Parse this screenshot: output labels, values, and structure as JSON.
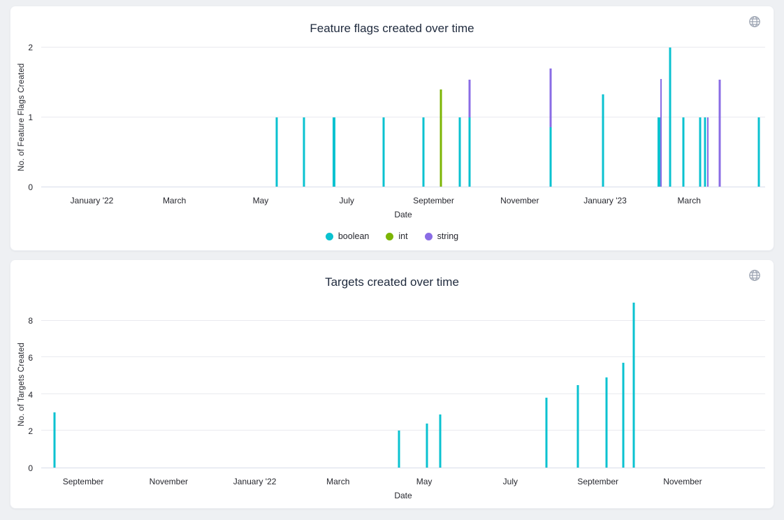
{
  "colors": {
    "boolean": "#0ac2d0",
    "int": "#7cb504",
    "string": "#8a6ce5",
    "grid": "#e9eaef",
    "axis_line": "#d7dcea",
    "title_text": "#1f2a3d",
    "body_text": "#26272e",
    "icon": "#9aa2b0",
    "card_bg": "#ffffff",
    "page_bg": "#eef0f3"
  },
  "icons": {
    "corner_icon": "globe-icon"
  },
  "chart_data": [
    {
      "type": "bar",
      "title": "Feature flags created over time",
      "ylabel": "No. of Feature Flags Created",
      "xlabel": "Date",
      "ylim": [
        0,
        2
      ],
      "y_ticks": [
        0,
        1,
        2
      ],
      "grid": true,
      "legend_position": "bottom-center",
      "legend": [
        {
          "label": "boolean",
          "c": "boolean"
        },
        {
          "label": "int",
          "c": "int"
        },
        {
          "label": "string",
          "c": "string"
        }
      ],
      "x_labels": [
        {
          "text": "January '22",
          "pct": 7.0
        },
        {
          "text": "March",
          "pct": 18.4
        },
        {
          "text": "May",
          "pct": 30.3
        },
        {
          "text": "July",
          "pct": 42.2
        },
        {
          "text": "September",
          "pct": 54.2
        },
        {
          "text": "November",
          "pct": 66.1
        },
        {
          "text": "January '23",
          "pct": 77.9
        },
        {
          "text": "March",
          "pct": 89.5
        }
      ],
      "bars": [
        {
          "pct": 32.5,
          "v": 1,
          "c": "boolean",
          "approx_date": "mid May '22"
        },
        {
          "pct": 36.3,
          "v": 1,
          "c": "boolean",
          "approx_date": "late May '22"
        },
        {
          "pct": 40.4,
          "v": 1,
          "c": "boolean",
          "w": 4,
          "approx_date": "late June '22"
        },
        {
          "pct": 47.3,
          "v": 1,
          "c": "boolean",
          "approx_date": "early Aug '22"
        },
        {
          "pct": 52.8,
          "v": 1,
          "c": "boolean",
          "approx_date": "early Sep '22"
        },
        {
          "pct": 55.2,
          "v": 1.4,
          "c": "int",
          "approx_date": "mid Sep '22"
        },
        {
          "pct": 57.8,
          "v": 1,
          "c": "boolean",
          "approx_date": "early Oct '22"
        },
        {
          "pct": 59.2,
          "v": 1,
          "c": "boolean",
          "approx_date": "mid Oct '22"
        },
        {
          "pct": 59.2,
          "v": 1.54,
          "vmin": 1,
          "c": "string",
          "approx_date": "mid Oct '22"
        },
        {
          "pct": 70.4,
          "v": 0.85,
          "c": "boolean",
          "approx_date": "late Nov '22"
        },
        {
          "pct": 70.4,
          "v": 1.7,
          "vmin": 0.85,
          "c": "string",
          "approx_date": "late Nov '22"
        },
        {
          "pct": 77.6,
          "v": 1.33,
          "c": "boolean",
          "approx_date": "early Jan '23"
        },
        {
          "pct": 85.3,
          "v": 1,
          "c": "boolean",
          "w": 4,
          "approx_date": "mid Feb '23"
        },
        {
          "pct": 85.6,
          "v": 1.55,
          "c": "string",
          "w": 2,
          "approx_date": "mid Feb '23"
        },
        {
          "pct": 86.9,
          "v": 2,
          "c": "boolean",
          "approx_date": "late Feb '23"
        },
        {
          "pct": 88.7,
          "v": 1,
          "c": "boolean",
          "approx_date": "early Mar '23"
        },
        {
          "pct": 91.0,
          "v": 1,
          "c": "boolean",
          "approx_date": "mid Mar '23"
        },
        {
          "pct": 91.7,
          "v": 1,
          "c": "boolean",
          "approx_date": "late Mar '23"
        },
        {
          "pct": 92.1,
          "v": 1,
          "c": "string",
          "w": 2,
          "approx_date": "late Mar '23"
        },
        {
          "pct": 93.7,
          "v": 1.54,
          "c": "string",
          "approx_date": "early Apr '23"
        },
        {
          "pct": 99.1,
          "v": 1,
          "c": "boolean",
          "approx_date": "early May '23"
        }
      ]
    },
    {
      "type": "bar",
      "title": "Targets created over time",
      "ylabel": "No. of Targets Created",
      "xlabel": "Date",
      "ylim": [
        0,
        9.1
      ],
      "y_ticks": [
        0,
        2,
        4,
        6,
        8
      ],
      "grid": true,
      "legend": null,
      "x_labels": [
        {
          "text": "September",
          "pct": 5.8
        },
        {
          "text": "November",
          "pct": 17.6
        },
        {
          "text": "January '22",
          "pct": 29.5
        },
        {
          "text": "March",
          "pct": 41.0
        },
        {
          "text": "May",
          "pct": 52.9
        },
        {
          "text": "July",
          "pct": 64.8
        },
        {
          "text": "September",
          "pct": 76.9
        },
        {
          "text": "November",
          "pct": 88.6
        }
      ],
      "bars": [
        {
          "pct": 1.8,
          "v": 3,
          "c": "boolean",
          "approx_date": "mid Aug '21"
        },
        {
          "pct": 49.4,
          "v": 2,
          "c": "boolean",
          "approx_date": "late Apr '22"
        },
        {
          "pct": 53.3,
          "v": 2.4,
          "c": "boolean",
          "approx_date": "early May '22"
        },
        {
          "pct": 55.1,
          "v": 2.9,
          "c": "boolean",
          "approx_date": "mid May '22"
        },
        {
          "pct": 69.8,
          "v": 3.8,
          "c": "boolean",
          "approx_date": "late Jul '22"
        },
        {
          "pct": 74.1,
          "v": 4.5,
          "c": "boolean",
          "approx_date": "early Aug '22"
        },
        {
          "pct": 78.1,
          "v": 4.9,
          "c": "boolean",
          "approx_date": "late Aug '22"
        },
        {
          "pct": 80.4,
          "v": 5.7,
          "c": "boolean",
          "approx_date": "early Sep '22"
        },
        {
          "pct": 81.9,
          "v": 9,
          "c": "boolean",
          "approx_date": "mid Sep '22"
        }
      ]
    }
  ]
}
